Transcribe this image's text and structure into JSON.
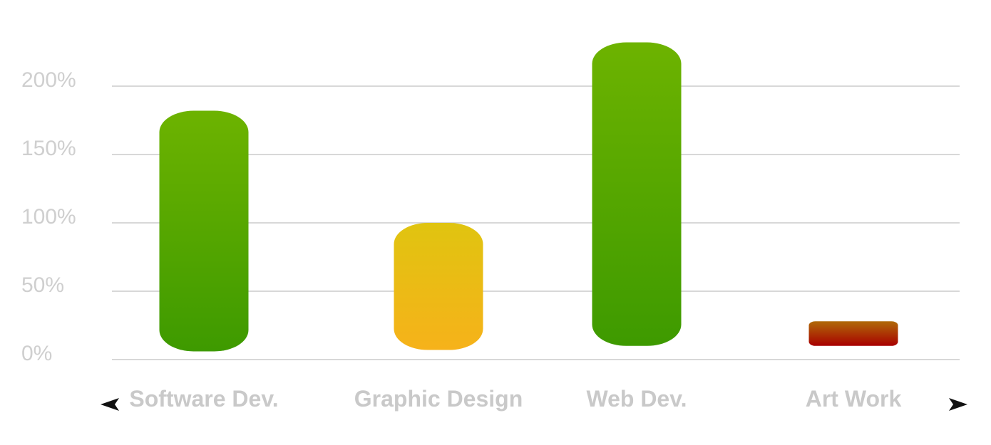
{
  "chart_data": {
    "type": "bar",
    "categories": [
      "Software Dev.",
      "Graphic Design",
      "Web Dev.",
      "Art Work"
    ],
    "values": [
      182,
      100,
      232,
      28
    ],
    "bar_bottoms": [
      6,
      7,
      10,
      10
    ],
    "y_ticks": [
      "0%",
      "50%",
      "100%",
      "150%",
      "200%"
    ],
    "y_tick_values": [
      0,
      50,
      100,
      150,
      200
    ],
    "ylim": [
      0,
      250
    ],
    "grid": true,
    "colors": {
      "Software Dev.": [
        "#6db300",
        "#3e9a00"
      ],
      "Graphic Design": [
        "#e0c410",
        "#f6b21a"
      ],
      "Web Dev.": [
        "#6db300",
        "#3e9a00"
      ],
      "Art Work": [
        "#b06a08",
        "#a80000"
      ]
    }
  },
  "navigation": {
    "prev_icon": "left-arrow-icon",
    "next_icon": "right-arrow-icon"
  }
}
